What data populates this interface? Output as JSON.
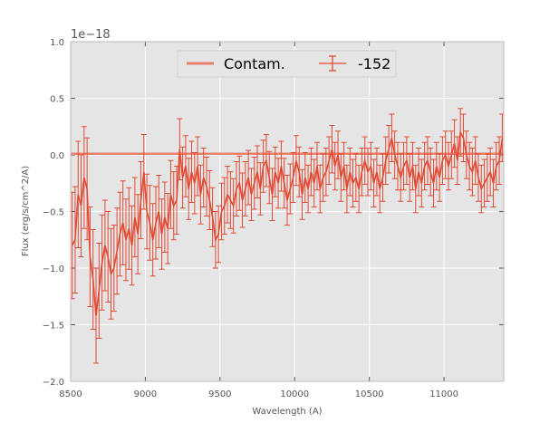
{
  "chart_data": {
    "type": "line",
    "title": "",
    "xlabel": "Wavelength (A)",
    "ylabel": "Flux (erg/s/cm^2/A)",
    "y_offset_label": "1e−18",
    "xlim": [
      8500,
      11400
    ],
    "ylim": [
      -2.0,
      1.0
    ],
    "y_scale": 1e-18,
    "x_ticks": [
      8500,
      9000,
      9500,
      10000,
      10500,
      11000
    ],
    "x_tick_labels": [
      "8500",
      "9000",
      "9500",
      "10000",
      "10500",
      "11000"
    ],
    "y_ticks": [
      -2.0,
      -1.5,
      -1.0,
      -0.5,
      0.0,
      0.5,
      1.0
    ],
    "y_tick_labels": [
      "−2.0",
      "−1.5",
      "−1.0",
      "−0.5",
      "0.0",
      "0.5",
      "1.0"
    ],
    "grid": true,
    "legend_position": "top-center",
    "colors": {
      "series": "#e24a33",
      "contam": "#e8816b",
      "plot_bg": "#e5e5e5",
      "grid": "#ffffff"
    },
    "series": [
      {
        "name": "Contam.",
        "style": "line",
        "x": [
          8500,
          11400
        ],
        "y": [
          0.01,
          0.01
        ]
      },
      {
        "name": "-152",
        "style": "errorbar",
        "x": [
          8510,
          8530,
          8550,
          8570,
          8590,
          8610,
          8630,
          8650,
          8670,
          8690,
          8710,
          8730,
          8750,
          8770,
          8790,
          8810,
          8830,
          8850,
          8870,
          8890,
          8910,
          8930,
          8950,
          8970,
          8990,
          9010,
          9030,
          9050,
          9070,
          9090,
          9110,
          9130,
          9150,
          9170,
          9190,
          9210,
          9230,
          9250,
          9270,
          9290,
          9310,
          9330,
          9350,
          9370,
          9390,
          9410,
          9430,
          9450,
          9470,
          9490,
          9510,
          9530,
          9550,
          9570,
          9590,
          9610,
          9630,
          9650,
          9670,
          9690,
          9710,
          9730,
          9750,
          9770,
          9790,
          9810,
          9830,
          9850,
          9870,
          9890,
          9910,
          9930,
          9950,
          9970,
          9990,
          10010,
          10030,
          10050,
          10070,
          10090,
          10110,
          10130,
          10150,
          10170,
          10190,
          10210,
          10230,
          10250,
          10270,
          10290,
          10310,
          10330,
          10350,
          10370,
          10390,
          10410,
          10430,
          10450,
          10470,
          10490,
          10510,
          10530,
          10550,
          10570,
          10590,
          10610,
          10630,
          10650,
          10670,
          10690,
          10710,
          10730,
          10750,
          10770,
          10790,
          10810,
          10830,
          10850,
          10870,
          10890,
          10910,
          10930,
          10950,
          10970,
          10990,
          11010,
          11030,
          11050,
          11070,
          11090,
          11110,
          11130,
          11150,
          11170,
          11190,
          11210,
          11230,
          11250,
          11270,
          11290,
          11310,
          11330,
          11350,
          11370,
          11390
        ],
        "y": [
          -0.8,
          -0.75,
          -0.35,
          -0.45,
          -0.2,
          -0.3,
          -0.9,
          -1.1,
          -1.42,
          -1.2,
          -0.95,
          -0.8,
          -0.9,
          -1.05,
          -1.0,
          -0.85,
          -0.7,
          -0.6,
          -0.75,
          -0.65,
          -0.8,
          -0.55,
          -0.7,
          -0.4,
          -0.15,
          -0.5,
          -0.6,
          -0.75,
          -0.6,
          -0.5,
          -0.7,
          -0.55,
          -0.65,
          -0.35,
          -0.45,
          -0.4,
          0.05,
          -0.2,
          -0.1,
          -0.3,
          -0.15,
          -0.25,
          -0.1,
          -0.35,
          -0.2,
          -0.28,
          -0.4,
          -0.55,
          -0.75,
          -0.7,
          -0.5,
          -0.45,
          -0.35,
          -0.4,
          -0.45,
          -0.3,
          -0.25,
          -0.4,
          -0.3,
          -0.2,
          -0.35,
          -0.25,
          -0.15,
          -0.3,
          -0.1,
          -0.05,
          -0.2,
          -0.35,
          -0.15,
          -0.25,
          -0.1,
          -0.25,
          -0.4,
          -0.3,
          -0.2,
          -0.05,
          -0.15,
          -0.35,
          -0.2,
          -0.3,
          -0.15,
          -0.25,
          -0.1,
          -0.3,
          -0.2,
          -0.15,
          -0.05,
          0.05,
          -0.1,
          0.0,
          -0.2,
          -0.1,
          -0.3,
          -0.15,
          -0.25,
          -0.2,
          -0.3,
          -0.15,
          -0.05,
          -0.15,
          -0.1,
          -0.25,
          -0.15,
          -0.3,
          -0.2,
          -0.05,
          0.05,
          0.15,
          0.0,
          -0.1,
          -0.2,
          -0.1,
          -0.05,
          -0.2,
          -0.1,
          -0.3,
          -0.15,
          -0.25,
          -0.1,
          -0.05,
          -0.15,
          -0.25,
          -0.1,
          -0.2,
          -0.05,
          0.0,
          -0.1,
          0.0,
          0.1,
          -0.05,
          0.2,
          0.15,
          0.0,
          -0.1,
          -0.15,
          -0.05,
          -0.2,
          -0.3,
          -0.25,
          -0.2,
          -0.15,
          -0.25,
          -0.1,
          -0.05,
          0.15
        ],
        "yerr": [
          0.47,
          0.47,
          0.47,
          0.45,
          0.45,
          0.45,
          0.44,
          0.44,
          0.42,
          0.42,
          0.42,
          0.4,
          0.4,
          0.4,
          0.38,
          0.38,
          0.37,
          0.37,
          0.36,
          0.36,
          0.35,
          0.35,
          0.35,
          0.34,
          0.33,
          0.33,
          0.33,
          0.32,
          0.32,
          0.32,
          0.31,
          0.31,
          0.31,
          0.3,
          0.3,
          0.3,
          0.27,
          0.27,
          0.27,
          0.27,
          0.27,
          0.27,
          0.26,
          0.26,
          0.26,
          0.26,
          0.26,
          0.26,
          0.25,
          0.25,
          0.25,
          0.25,
          0.25,
          0.25,
          0.24,
          0.24,
          0.24,
          0.24,
          0.24,
          0.24,
          0.23,
          0.23,
          0.23,
          0.23,
          0.23,
          0.23,
          0.23,
          0.23,
          0.22,
          0.22,
          0.22,
          0.22,
          0.22,
          0.22,
          0.22,
          0.22,
          0.22,
          0.22,
          0.22,
          0.21,
          0.21,
          0.21,
          0.21,
          0.21,
          0.21,
          0.21,
          0.21,
          0.21,
          0.21,
          0.21,
          0.21,
          0.21,
          0.21,
          0.21,
          0.21,
          0.21,
          0.21,
          0.21,
          0.21,
          0.21,
          0.21,
          0.21,
          0.21,
          0.21,
          0.21,
          0.21,
          0.21,
          0.21,
          0.21,
          0.21,
          0.21,
          0.21,
          0.21,
          0.21,
          0.21,
          0.21,
          0.21,
          0.21,
          0.21,
          0.21,
          0.21,
          0.21,
          0.21,
          0.21,
          0.21,
          0.21,
          0.21,
          0.21,
          0.21,
          0.21,
          0.21,
          0.21,
          0.21,
          0.21,
          0.21,
          0.21,
          0.21,
          0.21,
          0.21,
          0.21,
          0.21,
          0.21,
          0.21,
          0.21,
          0.21
        ]
      }
    ]
  }
}
